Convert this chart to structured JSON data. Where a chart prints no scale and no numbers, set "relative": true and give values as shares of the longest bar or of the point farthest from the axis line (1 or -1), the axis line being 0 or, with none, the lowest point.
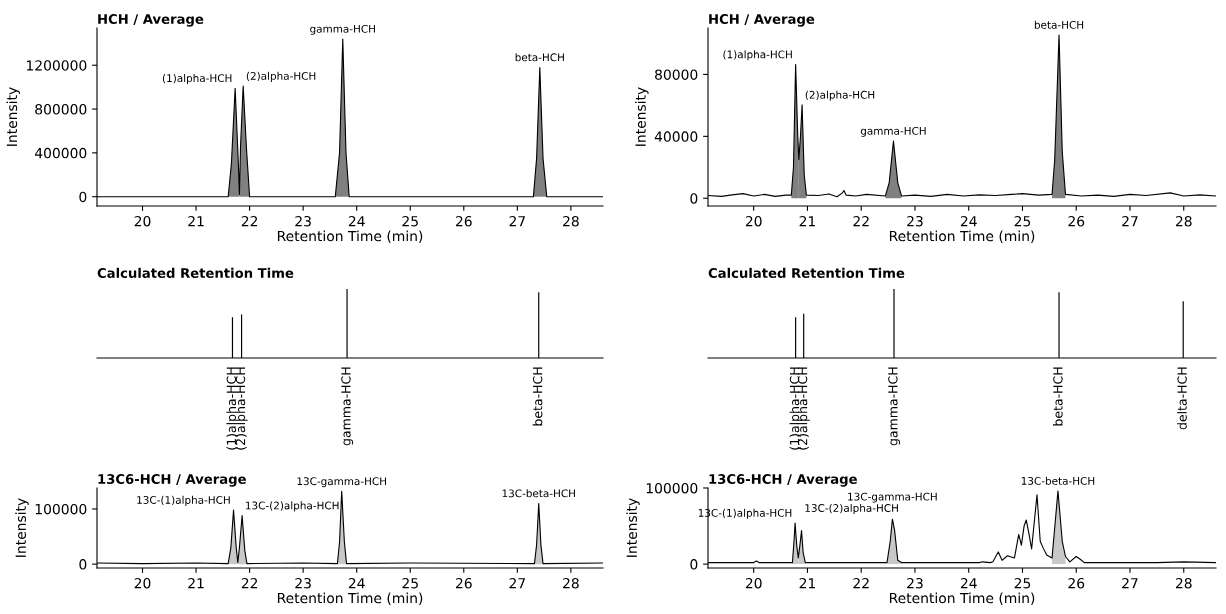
{
  "chart_data": [
    {
      "type": "line",
      "title": "HCH / Average",
      "xlabel": "Retention Time (min)",
      "ylabel": "Intensity",
      "xlim": [
        19.15,
        28.6
      ],
      "xticks": [
        20,
        21,
        22,
        23,
        24,
        25,
        26,
        27,
        28
      ],
      "ylim": [
        -85000,
        1540000
      ],
      "yticks": [
        0,
        400000,
        800000,
        1200000
      ],
      "series": [
        {
          "type": "line",
          "color": "#000000",
          "x": [
            19.15,
            21.6,
            21.66,
            21.73,
            21.79,
            21.81,
            21.83,
            21.88,
            21.94,
            22.0,
            23.6,
            23.68,
            23.74,
            23.8,
            23.86,
            27.3,
            27.36,
            27.42,
            27.48,
            27.55,
            28.6
          ],
          "values": [
            0,
            0,
            300000,
            990000,
            300000,
            20000,
            450000,
            1010000,
            450000,
            0,
            0,
            400000,
            1440000,
            400000,
            0,
            0,
            350000,
            1180000,
            350000,
            0,
            0
          ]
        },
        {
          "type": "area",
          "color": "#808080",
          "x": [
            21.6,
            21.66,
            21.73,
            21.79,
            21.81
          ],
          "values": [
            0,
            300000,
            990000,
            300000,
            20000
          ]
        },
        {
          "type": "area",
          "color": "#808080",
          "x": [
            21.81,
            21.83,
            21.88,
            21.94,
            22.0
          ],
          "values": [
            20000,
            450000,
            1010000,
            450000,
            0
          ]
        },
        {
          "type": "area",
          "color": "#808080",
          "x": [
            23.6,
            23.68,
            23.74,
            23.8,
            23.86
          ],
          "values": [
            0,
            400000,
            1440000,
            400000,
            0
          ]
        },
        {
          "type": "area",
          "color": "#808080",
          "x": [
            27.3,
            27.36,
            27.42,
            27.48,
            27.55
          ],
          "values": [
            0,
            350000,
            1180000,
            350000,
            0
          ]
        }
      ],
      "annotations": [
        {
          "text": "(1)alpha-HCH",
          "x": 21.73,
          "y": 990000
        },
        {
          "text": "(2)alpha-HCH",
          "x": 21.88,
          "y": 1010000
        },
        {
          "text": "gamma-HCH",
          "x": 23.74,
          "y": 1440000
        },
        {
          "text": "beta-HCH",
          "x": 27.42,
          "y": 1180000
        }
      ]
    },
    {
      "type": "line",
      "title": "HCH / Average",
      "xlabel": "Retention Time (min)",
      "ylabel": "Intensity",
      "xlim": [
        19.15,
        28.6
      ],
      "xticks": [
        20,
        21,
        22,
        23,
        24,
        25,
        26,
        27,
        28
      ],
      "ylim": [
        -5000,
        110000
      ],
      "yticks": [
        0,
        40000,
        80000
      ],
      "series": [
        {
          "type": "line",
          "color": "#000000",
          "x": [
            19.15,
            19.4,
            19.6,
            19.8,
            20.0,
            20.2,
            20.4,
            20.6,
            20.7,
            20.74,
            20.78,
            20.82,
            20.84,
            20.87,
            20.9,
            20.94,
            20.98,
            21.2,
            21.4,
            21.55,
            21.65,
            21.68,
            21.72,
            21.9,
            22.1,
            22.45,
            22.52,
            22.6,
            22.68,
            22.75,
            23.0,
            23.3,
            23.6,
            23.9,
            24.2,
            24.5,
            24.8,
            25.0,
            25.3,
            25.55,
            25.6,
            25.68,
            25.74,
            25.8,
            26.1,
            26.4,
            26.7,
            27.0,
            27.3,
            27.75,
            28.0,
            28.3,
            28.6
          ],
          "values": [
            1800,
            1200,
            2200,
            3000,
            1500,
            2500,
            1200,
            2000,
            2000,
            20000,
            86400,
            40000,
            25000,
            40000,
            60300,
            15000,
            2000,
            1800,
            2800,
            1000,
            3500,
            5000,
            2000,
            1500,
            2500,
            1500,
            10000,
            37000,
            10000,
            1500,
            2000,
            1200,
            2500,
            1500,
            2200,
            1800,
            2500,
            3000,
            2000,
            2500,
            25000,
            105500,
            30000,
            2500,
            1500,
            2000,
            1200,
            2500,
            1800,
            3500,
            1500,
            2200,
            1500
          ]
        },
        {
          "type": "area",
          "color": "#808080",
          "x": [
            20.7,
            20.74,
            20.78,
            20.82,
            20.84
          ],
          "values": [
            2000,
            20000,
            86400,
            40000,
            25000
          ]
        },
        {
          "type": "area",
          "color": "#808080",
          "x": [
            20.84,
            20.87,
            20.9,
            20.94,
            20.98
          ],
          "values": [
            25000,
            40000,
            60300,
            15000,
            2000
          ]
        },
        {
          "type": "area",
          "color": "#808080",
          "x": [
            22.45,
            22.52,
            22.6,
            22.68,
            22.75
          ],
          "values": [
            1500,
            10000,
            37000,
            10000,
            1500
          ]
        },
        {
          "type": "area",
          "color": "#808080",
          "x": [
            25.55,
            25.6,
            25.68,
            25.74,
            25.8
          ],
          "values": [
            2500,
            25000,
            105500,
            30000,
            2500
          ]
        }
      ],
      "annotations": [
        {
          "text": "(1)alpha-HCH",
          "x": 20.78,
          "y": 86400
        },
        {
          "text": "(2)alpha-HCH",
          "x": 20.9,
          "y": 60300
        },
        {
          "text": "gamma-HCH",
          "x": 22.6,
          "y": 37000
        },
        {
          "text": "beta-HCH",
          "x": 25.68,
          "y": 105500
        }
      ]
    },
    {
      "type": "bar",
      "title": "Calculated Retention Time",
      "relative": true,
      "xlim": [
        19.15,
        28.6
      ],
      "series": [
        {
          "color": "#000000",
          "x": [
            21.68,
            21.85,
            23.82,
            27.4
          ],
          "values": [
            0.59,
            0.63,
            1,
            0.95
          ]
        }
      ],
      "annotations": [
        {
          "text": "(1)alpha-HCH",
          "x": 21.68,
          "y": 0
        },
        {
          "text": "(2)alpha-HCH",
          "x": 21.85,
          "y": 0
        },
        {
          "text": "gamma-HCH",
          "x": 23.82,
          "y": 0
        },
        {
          "text": "beta-HCH",
          "x": 27.4,
          "y": 0
        }
      ]
    },
    {
      "type": "bar",
      "title": "Calculated Retention Time",
      "relative": true,
      "xlim": [
        19.15,
        28.6
      ],
      "series": [
        {
          "color": "#000000",
          "x": [
            20.78,
            20.93,
            22.61,
            25.68,
            27.99
          ],
          "values": [
            0.59,
            0.64,
            1,
            0.95,
            0.82
          ]
        }
      ],
      "annotations": [
        {
          "text": "(1)alpha-HCH",
          "x": 20.78,
          "y": 0
        },
        {
          "text": "(2)alpha-HCH",
          "x": 20.93,
          "y": 0
        },
        {
          "text": "gamma-HCH",
          "x": 22.61,
          "y": 0
        },
        {
          "text": "beta-HCH",
          "x": 25.68,
          "y": 0
        },
        {
          "text": "delta-HCH",
          "x": 27.99,
          "y": 0
        }
      ]
    },
    {
      "type": "line",
      "title": "13C6-HCH / Average",
      "xlabel": "Retention Time (min)",
      "ylabel": "Intensity",
      "xlim": [
        19.15,
        28.6
      ],
      "xticks": [
        20,
        21,
        22,
        23,
        24,
        25,
        26,
        27,
        28
      ],
      "ylim": [
        -7000,
        138000
      ],
      "yticks": [
        0,
        100000
      ],
      "series": [
        {
          "type": "line",
          "color": "#000000",
          "x": [
            19.15,
            20.0,
            21.0,
            21.6,
            21.65,
            21.7,
            21.75,
            21.78,
            21.81,
            21.86,
            21.91,
            21.95,
            23.0,
            23.64,
            23.68,
            23.72,
            23.77,
            23.81,
            25.0,
            27.32,
            27.36,
            27.4,
            27.44,
            27.48,
            28.6
          ],
          "values": [
            2000,
            1000,
            2000,
            1000,
            30000,
            98000,
            30000,
            3000,
            30000,
            88000,
            25000,
            1000,
            2000,
            1000,
            40000,
            132000,
            40000,
            1000,
            2000,
            1000,
            35000,
            110000,
            35000,
            1000,
            2000
          ]
        },
        {
          "type": "area",
          "color": "#c8c8c8",
          "x": [
            21.6,
            21.65,
            21.7,
            21.75,
            21.78
          ],
          "values": [
            1000,
            30000,
            98000,
            30000,
            3000
          ]
        },
        {
          "type": "area",
          "color": "#c8c8c8",
          "x": [
            21.78,
            21.81,
            21.86,
            21.91,
            21.95
          ],
          "values": [
            3000,
            30000,
            88000,
            25000,
            1000
          ]
        },
        {
          "type": "area",
          "color": "#c8c8c8",
          "x": [
            23.64,
            23.68,
            23.72,
            23.77,
            23.81
          ],
          "values": [
            1000,
            40000,
            132000,
            40000,
            1000
          ]
        },
        {
          "type": "area",
          "color": "#c8c8c8",
          "x": [
            27.32,
            27.36,
            27.4,
            27.44,
            27.48
          ],
          "values": [
            1000,
            35000,
            110000,
            35000,
            1000
          ]
        }
      ],
      "annotations": [
        {
          "text": "13C-(1)alpha-HCH",
          "x": 21.7,
          "y": 98000
        },
        {
          "text": "13C-(2)alpha-HCH",
          "x": 21.86,
          "y": 88000
        },
        {
          "text": "13C-gamma-HCH",
          "x": 23.72,
          "y": 132000
        },
        {
          "text": "13C-beta-HCH",
          "x": 27.4,
          "y": 110000
        }
      ]
    },
    {
      "type": "line",
      "title": "13C6-HCH / Average",
      "xlabel": "Retention Time (min)",
      "ylabel": "Intensity",
      "xlim": [
        19.15,
        28.6
      ],
      "xticks": [
        20,
        21,
        22,
        23,
        24,
        25,
        26,
        27,
        28
      ],
      "ylim": [
        -5100,
        100000
      ],
      "yticks": [
        0,
        100000
      ],
      "series": [
        {
          "type": "line",
          "color": "#000000",
          "x": [
            19.15,
            19.6,
            20.0,
            20.05,
            20.1,
            20.5,
            20.72,
            20.75,
            20.77,
            20.8,
            20.83,
            20.86,
            20.89,
            20.92,
            20.96,
            21.5,
            22.0,
            22.48,
            22.54,
            22.58,
            22.62,
            22.68,
            22.75,
            23.5,
            24.2,
            24.25,
            24.4,
            24.45,
            24.55,
            24.62,
            24.72,
            24.85,
            24.93,
            24.98,
            25.03,
            25.07,
            25.12,
            25.17,
            25.27,
            25.33,
            25.38,
            25.45,
            25.55,
            25.66,
            25.74,
            25.8,
            25.88,
            26.0,
            26.08,
            26.15,
            26.5,
            27.0,
            27.5,
            28.0,
            28.6
          ],
          "values": [
            2000,
            2000,
            2000,
            4000,
            2000,
            2000,
            2000,
            30000,
            54000,
            25000,
            8000,
            25000,
            44000,
            15000,
            2000,
            2000,
            2000,
            2000,
            30000,
            59000,
            45000,
            5000,
            2000,
            2000,
            2000,
            3000,
            2000,
            3000,
            16000,
            5000,
            11000,
            8000,
            39000,
            25000,
            50000,
            58000,
            40000,
            20000,
            91000,
            30000,
            22000,
            12000,
            8000,
            96000,
            30000,
            10000,
            3000,
            10000,
            6000,
            2000,
            2000,
            2000,
            2000,
            3000,
            2000
          ]
        },
        {
          "type": "area",
          "color": "#c8c8c8",
          "x": [
            20.72,
            20.75,
            20.77,
            20.8,
            20.83
          ],
          "values": [
            2000,
            30000,
            54000,
            25000,
            8000
          ]
        },
        {
          "type": "area",
          "color": "#c8c8c8",
          "x": [
            20.83,
            20.86,
            20.89,
            20.92,
            20.96
          ],
          "values": [
            8000,
            25000,
            44000,
            15000,
            2000
          ]
        },
        {
          "type": "area",
          "color": "#c8c8c8",
          "x": [
            22.48,
            22.54,
            22.58,
            22.62,
            22.68,
            22.75
          ],
          "values": [
            2000,
            30000,
            59000,
            45000,
            5000,
            2000
          ]
        },
        {
          "type": "area",
          "color": "#c8c8c8",
          "x": [
            25.55,
            25.66,
            25.74,
            25.8
          ],
          "values": [
            8000,
            96000,
            30000,
            10000
          ]
        }
      ],
      "annotations": [
        {
          "text": "13C-(1)alpha-HCH",
          "x": 20.77,
          "y": 54000
        },
        {
          "text": "13C-(2)alpha-HCH",
          "x": 20.89,
          "y": 44000
        },
        {
          "text": "13C-gamma-HCH",
          "x": 22.58,
          "y": 59000
        },
        {
          "text": "13C-beta-HCH",
          "x": 25.66,
          "y": 96000
        }
      ]
    }
  ]
}
